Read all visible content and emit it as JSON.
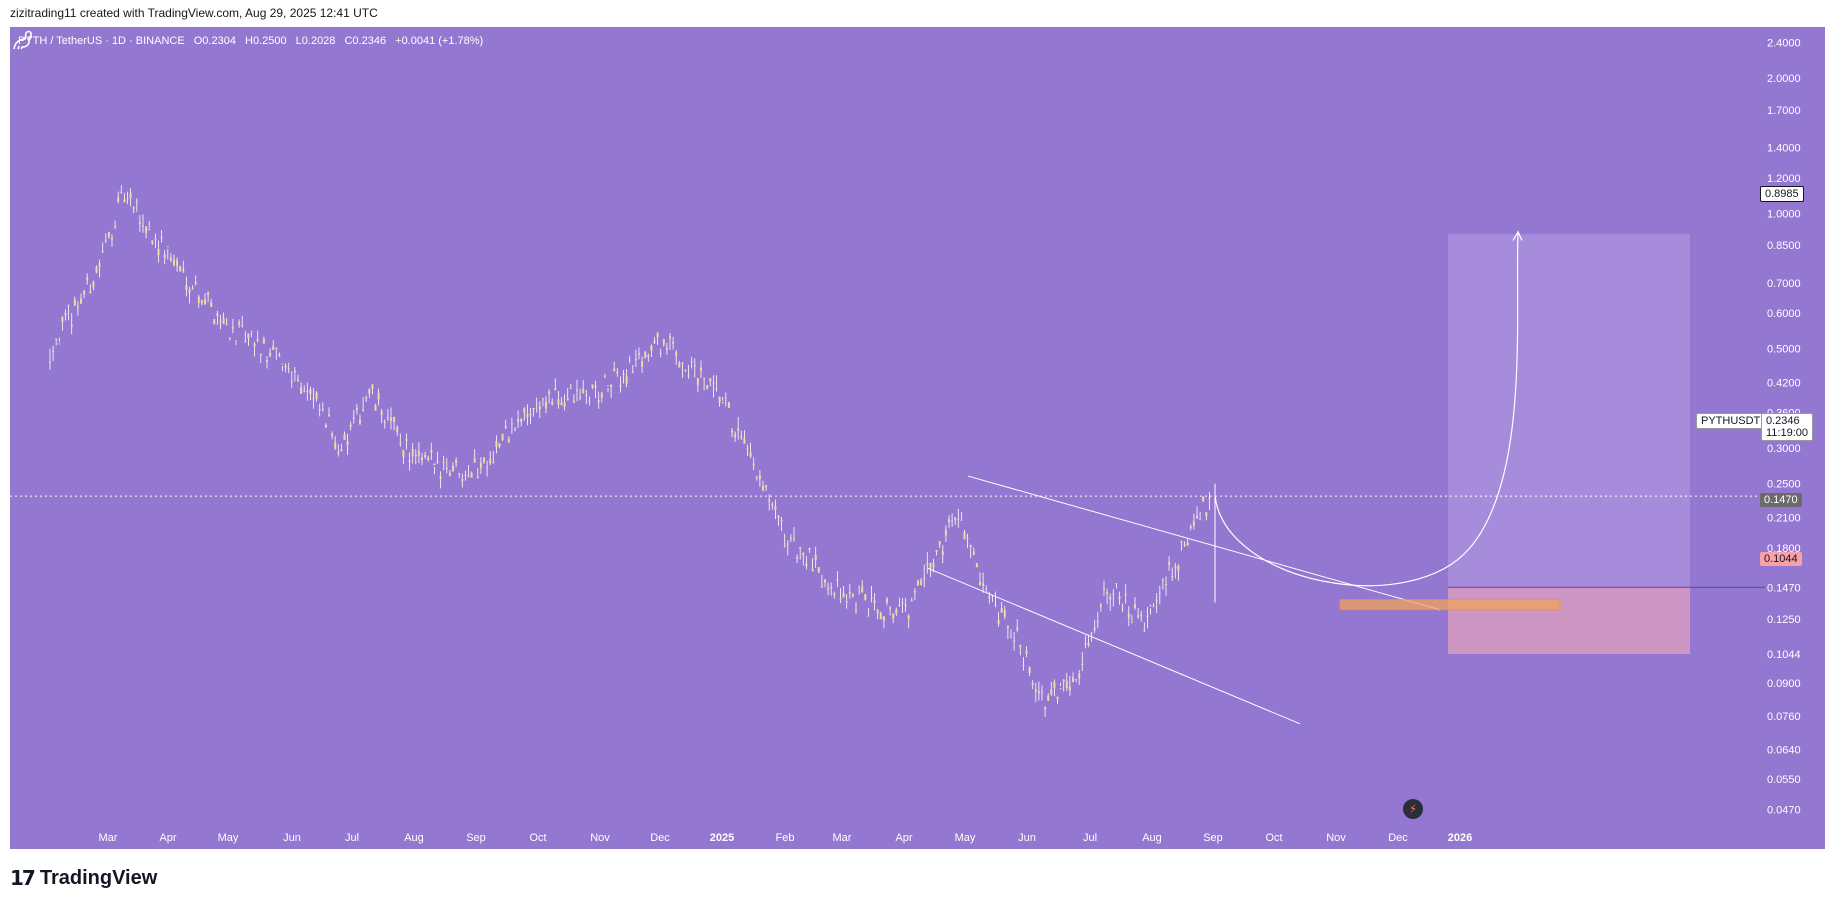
{
  "credit": "zizitrading11 created with TradingView.com, Aug 29, 2025 12:41 UTC",
  "legend": {
    "symbol": "PYTH / TetherUS · 1D · BINANCE",
    "open": "O0.2304",
    "high": "H0.2500",
    "low": "L0.2028",
    "close": "C0.2346",
    "change": "+0.0041 (+1.78%)"
  },
  "footer": {
    "brand": "TradingView"
  },
  "tags": {
    "target": "0.8985",
    "entry": "0.1470",
    "stop": "0.1044",
    "symbol": "PYTHUSDT",
    "price": "0.2346",
    "countdown": "11:19:00"
  },
  "icons": {
    "logo": "tradingview-logo-icon",
    "dino": "dinosaur-watermark-icon",
    "bolt": "lightning-bolt-icon"
  },
  "colors": {
    "background": "#9477d0",
    "candle": "#f2d99a",
    "wick": "#ffffff",
    "profit_zone": "#a98fdd",
    "loss_zone": "#d79ac0",
    "entry_box": "#f0a45d"
  },
  "chart_data": {
    "type": "candlestick",
    "yscale": "log",
    "ylim": [
      0.043,
      2.6
    ],
    "y_ticks": [
      "2.4000",
      "2.0000",
      "1.7000",
      "1.4000",
      "1.2000",
      "1.0000",
      "0.8500",
      "0.7000",
      "0.6000",
      "0.5000",
      "0.4200",
      "0.3600",
      "0.3000",
      "0.2500",
      "0.2100",
      "0.1800",
      "0.1470",
      "0.1250",
      "0.1044",
      "0.0900",
      "0.0760",
      "0.0640",
      "0.0550",
      "0.0470"
    ],
    "x_ticks": [
      "Mar",
      "Apr",
      "May",
      "Jun",
      "Jul",
      "Aug",
      "Sep",
      "Oct",
      "Nov",
      "Dec",
      "2025",
      "Feb",
      "Mar",
      "Apr",
      "May",
      "Jun",
      "Jul",
      "Aug",
      "Sep",
      "Oct",
      "Nov",
      "Dec",
      "2026"
    ],
    "series_close_approx": [
      {
        "x": "Feb 2024",
        "y": 0.5
      },
      {
        "x": "Mar 2024",
        "y": 0.75
      },
      {
        "x": "Mar 2024",
        "y": 1.1
      },
      {
        "x": "Apr 2024",
        "y": 0.8
      },
      {
        "x": "May 2024",
        "y": 0.55
      },
      {
        "x": "Jun 2024",
        "y": 0.45
      },
      {
        "x": "Jul 2024",
        "y": 0.3
      },
      {
        "x": "Jul 2024",
        "y": 0.4
      },
      {
        "x": "Aug 2024",
        "y": 0.28
      },
      {
        "x": "Sep 2024",
        "y": 0.27
      },
      {
        "x": "Oct 2024",
        "y": 0.38
      },
      {
        "x": "Nov 2024",
        "y": 0.4
      },
      {
        "x": "Dec 2024",
        "y": 0.52
      },
      {
        "x": "Jan 2025",
        "y": 0.38
      },
      {
        "x": "Feb 2025",
        "y": 0.19
      },
      {
        "x": "Mar 2025",
        "y": 0.14
      },
      {
        "x": "Apr 2025",
        "y": 0.13
      },
      {
        "x": "May 2025",
        "y": 0.22
      },
      {
        "x": "May 2025",
        "y": 0.14
      },
      {
        "x": "Jun 2025",
        "y": 0.11
      },
      {
        "x": "Jun 2025",
        "y": 0.08
      },
      {
        "x": "Jul 2025",
        "y": 0.1
      },
      {
        "x": "Jul 2025",
        "y": 0.15
      },
      {
        "x": "Aug 2025",
        "y": 0.12
      },
      {
        "x": "Aug 2025",
        "y": 0.235
      }
    ],
    "annotations": {
      "current_price": 0.2346,
      "target": 0.8985,
      "entry": 0.147,
      "stop": 0.1044
    },
    "grid": false,
    "legend": "top-left"
  }
}
